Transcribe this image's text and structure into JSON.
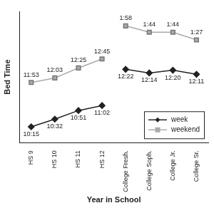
{
  "chart_data": {
    "type": "line",
    "x_label": "Year in School",
    "y_label": "Bed Time",
    "categories": [
      "HS 9",
      "HS 10",
      "HS 11",
      "HS 12",
      "College Fresh.",
      "College Soph.",
      "College Jr.",
      "College Sr."
    ],
    "series": [
      {
        "name": "week",
        "color": "#222222",
        "marker": "diamond",
        "values": [
          1335,
          1352,
          1371,
          1382,
          1462,
          1454,
          1460,
          1451
        ],
        "value_labels": [
          "10:15",
          "10:32",
          "10:51",
          "11:02",
          "12:22",
          "12:14",
          "12:20",
          "12:11"
        ]
      },
      {
        "name": "weekend",
        "color": "#aaaaaa",
        "marker": "square",
        "values": [
          1433,
          1443,
          1465,
          1485,
          1558,
          1544,
          1544,
          1527
        ],
        "value_labels": [
          "11:53",
          "12:03",
          "12:25",
          "12:45",
          "1:58",
          "1:44",
          "1:44",
          "1:27"
        ]
      }
    ],
    "ylim": [
      1300,
      1590
    ],
    "tick_labels": "x",
    "grid": false,
    "legend": "lower right",
    "data_labels": true
  }
}
